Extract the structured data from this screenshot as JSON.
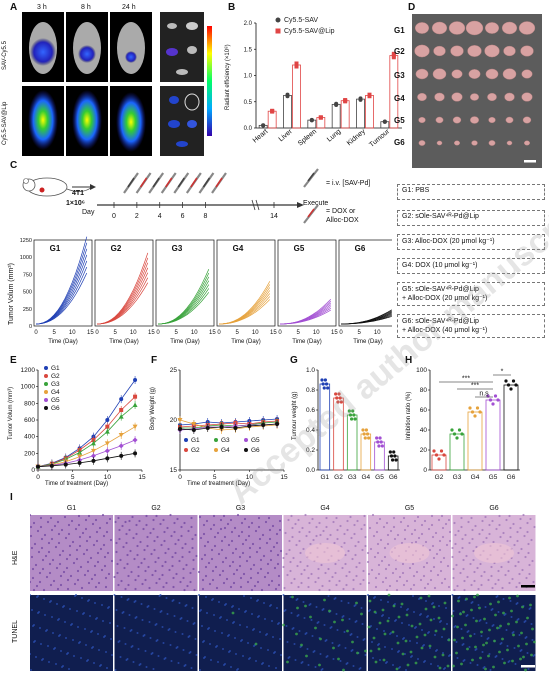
{
  "panels": {
    "A": "A",
    "B": "B",
    "C": "C",
    "D": "D",
    "E": "E",
    "F": "F",
    "G": "G",
    "H": "H",
    "I": "I"
  },
  "a": {
    "times": [
      "3 h",
      "8 h",
      "24 h"
    ],
    "rows": [
      "SAV-Cy5.5",
      "Cy5.5-SAV@Lip"
    ]
  },
  "b": {
    "legend": [
      "Cy5.5-SAV",
      "Cy5.5-SAV@Lip"
    ],
    "ylabel": "Radiant efficiency (×10⁸)",
    "ticks": [
      "0.0",
      "0.5",
      "1.0",
      "1.5",
      "2.0"
    ],
    "organs": [
      "Heart",
      "Liver",
      "Spleen",
      "Lung",
      "Kidney",
      "Tumour"
    ]
  },
  "d": {
    "groups": [
      "G1",
      "G2",
      "G3",
      "G4",
      "G5",
      "G6"
    ]
  },
  "c": {
    "cell_line": "4T1",
    "cell_count": "1×10⁶",
    "day_label": "Day",
    "days": [
      "0",
      "2",
      "4",
      "6",
      "8",
      "14"
    ],
    "execute": "Execute",
    "sym1": "= i.v. [SAV-Pd]",
    "sym2_a": "= DOX or",
    "sym2_b": "Alloc-DOX",
    "growth_ylabel": "Tumor Volum (mm³)",
    "growth_xlabel": "Time (Day)",
    "growth_yticks": [
      "0",
      "250",
      "500",
      "750",
      "1000",
      "1250"
    ],
    "growth_xticks": [
      "0",
      "5",
      "10",
      "15"
    ],
    "groups": [
      "G1",
      "G2",
      "G3",
      "G4",
      "G5",
      "G6"
    ],
    "legend": [
      "G1: PBS",
      "G2: sOle-SAV⁴ᴿ-Pd@Lip",
      "G3: Alloc-DOX (20 μmol kg⁻¹)",
      "G4: DOX (10 μmol kg⁻¹)",
      "G5: sOle-SAV⁴ᴿ-Pd@Lip",
      "+ Alloc-DOX (20 μmol kg⁻¹)",
      "G6: sOle-SAV⁴ᴿ-Pd@Lip",
      "+ Alloc-DOX (40 μmol kg⁻¹)"
    ]
  },
  "e": {
    "ylabel": "Tumor Volum (mm³)",
    "xlabel": "Time of treatment (Day)",
    "yticks": [
      "0",
      "200",
      "400",
      "600",
      "800",
      "1000",
      "1200"
    ],
    "xticks": [
      "0",
      "5",
      "10",
      "15"
    ],
    "legend": [
      "G1",
      "G2",
      "G3",
      "G4",
      "G5",
      "G6"
    ]
  },
  "f": {
    "ylabel": "Body Weight (g)",
    "xlabel": "Time of treatment (Day)",
    "yticks": [
      "15",
      "20",
      "25"
    ],
    "xticks": [
      "0",
      "5",
      "10",
      "15"
    ],
    "legend": [
      "G1",
      "G2",
      "G3",
      "G4",
      "G5",
      "G6"
    ]
  },
  "g": {
    "ylabel": "Tumour weight (g)",
    "yticks": [
      "0.0",
      "0.2",
      "0.4",
      "0.6",
      "0.8",
      "1.0"
    ],
    "groups": [
      "G1",
      "G2",
      "G3",
      "G4",
      "G5",
      "G6"
    ]
  },
  "h": {
    "ylabel": "Inhibition ratio (%)",
    "yticks": [
      "0",
      "20",
      "40",
      "60",
      "80",
      "100"
    ],
    "groups": [
      "G2",
      "G3",
      "G4",
      "G5",
      "G6"
    ],
    "sig": [
      "***",
      "***",
      "n.s",
      "*"
    ]
  },
  "i": {
    "groups": [
      "G1",
      "G2",
      "G3",
      "G4",
      "G5",
      "G6"
    ],
    "rows": [
      "H&E",
      "TUNEL"
    ]
  },
  "watermark": "Accepted author manuscript",
  "colors": {
    "g1": "#1f3fb4",
    "g2": "#d9473e",
    "g3": "#39a33b",
    "g4": "#e6a23c",
    "g5": "#a24fd3",
    "g6": "#111111",
    "he": "#c9a8d6",
    "tunel": "#152a5e"
  },
  "chart_data": [
    {
      "type": "bar",
      "title": "",
      "categories": [
        "Heart",
        "Liver",
        "Spleen",
        "Lung",
        "Kidney",
        "Tumour"
      ],
      "ylabel": "Radiant efficiency (×10⁸)",
      "ylim": [
        0,
        2.0
      ],
      "series": [
        {
          "name": "Cy5.5-SAV",
          "values": [
            0.05,
            0.62,
            0.15,
            0.45,
            0.55,
            0.12
          ]
        },
        {
          "name": "Cy5.5-SAV@Lip",
          "values": [
            0.32,
            1.2,
            0.2,
            0.52,
            0.62,
            1.38
          ]
        }
      ]
    },
    {
      "type": "line",
      "xlabel": "Time of treatment (Day)",
      "ylabel": "Tumor Volum (mm³)",
      "ylim": [
        0,
        1200
      ],
      "x": [
        0,
        2,
        4,
        6,
        8,
        10,
        12,
        14
      ],
      "series": [
        {
          "name": "G1",
          "values": [
            40,
            80,
            150,
            260,
            400,
            600,
            850,
            1080
          ]
        },
        {
          "name": "G2",
          "values": [
            40,
            75,
            140,
            240,
            360,
            520,
            720,
            880
          ]
        },
        {
          "name": "G3",
          "values": [
            40,
            70,
            130,
            210,
            320,
            460,
            640,
            780
          ]
        },
        {
          "name": "G4",
          "values": [
            40,
            60,
            100,
            160,
            230,
            320,
            420,
            520
          ]
        },
        {
          "name": "G5",
          "values": [
            40,
            55,
            80,
            120,
            170,
            230,
            290,
            360
          ]
        },
        {
          "name": "G6",
          "values": [
            40,
            50,
            65,
            85,
            110,
            140,
            170,
            200
          ]
        }
      ]
    },
    {
      "type": "line",
      "xlabel": "Time of treatment (Day)",
      "ylabel": "Body Weight (g)",
      "ylim": [
        15,
        25
      ],
      "x": [
        0,
        2,
        4,
        6,
        8,
        10,
        12,
        14
      ],
      "series": [
        {
          "name": "G1",
          "values": [
            19.5,
            19.6,
            19.8,
            19.7,
            19.8,
            19.9,
            20.0,
            20.1
          ]
        },
        {
          "name": "G2",
          "values": [
            19.3,
            19.4,
            19.5,
            19.6,
            19.7,
            19.6,
            19.8,
            19.9
          ]
        },
        {
          "name": "G3",
          "values": [
            19.2,
            19.2,
            19.4,
            19.5,
            19.4,
            19.5,
            19.7,
            19.8
          ]
        },
        {
          "name": "G4",
          "values": [
            20.0,
            19.6,
            19.2,
            19.0,
            19.1,
            19.3,
            19.4,
            19.5
          ]
        },
        {
          "name": "G5",
          "values": [
            19.0,
            19.1,
            19.3,
            19.3,
            19.4,
            19.5,
            19.5,
            19.6
          ]
        },
        {
          "name": "G6",
          "values": [
            19.1,
            19.0,
            19.2,
            19.3,
            19.2,
            19.4,
            19.5,
            19.6
          ]
        }
      ]
    },
    {
      "type": "bar",
      "categories": [
        "G1",
        "G2",
        "G3",
        "G4",
        "G5",
        "G6"
      ],
      "ylabel": "Tumour weight (g)",
      "ylim": [
        0,
        1.0
      ],
      "values": [
        0.86,
        0.72,
        0.55,
        0.36,
        0.28,
        0.14
      ]
    },
    {
      "type": "bar",
      "categories": [
        "G2",
        "G3",
        "G4",
        "G5",
        "G6"
      ],
      "ylabel": "Inhibition ratio (%)",
      "ylim": [
        0,
        100
      ],
      "values": [
        15,
        36,
        58,
        70,
        85
      ]
    }
  ]
}
